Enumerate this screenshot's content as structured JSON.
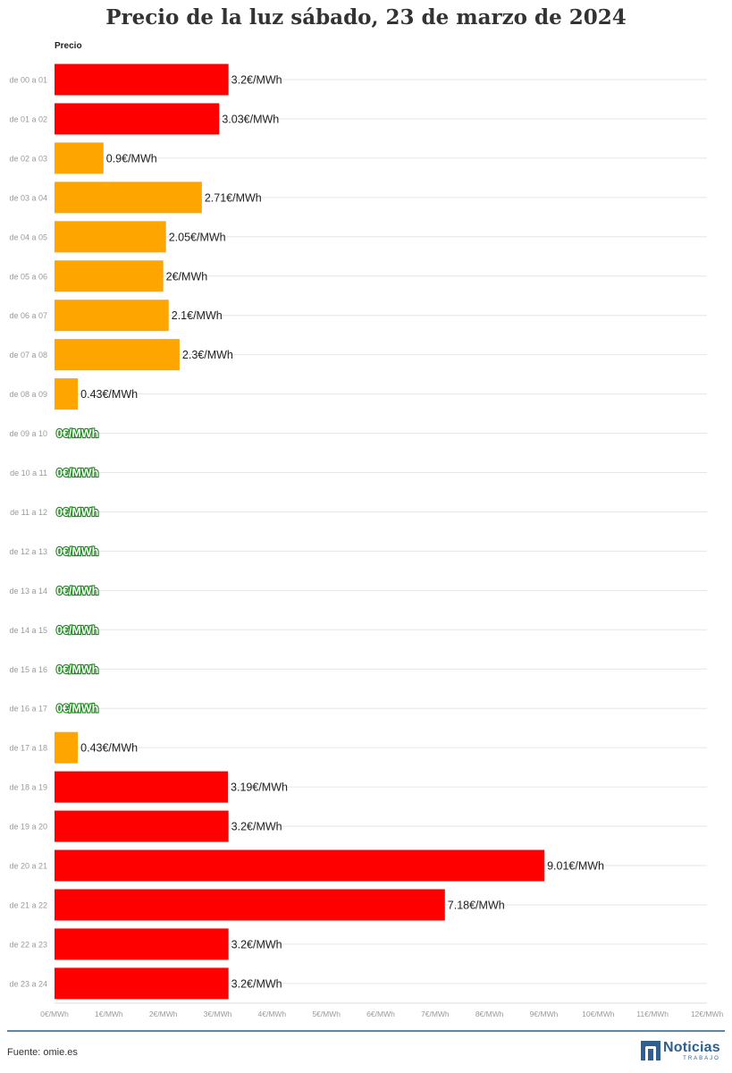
{
  "chart_data": {
    "type": "bar",
    "orientation": "horizontal",
    "title": "Precio de la luz sábado, 23 de marzo de 2024",
    "series_name": "Precio",
    "categories": [
      "de 00 a 01",
      "de 01 a 02",
      "de 02 a 03",
      "de 03 a 04",
      "de 04 a 05",
      "de 05 a 06",
      "de 06 a 07",
      "de 07 a 08",
      "de 08 a 09",
      "de 09 a 10",
      "de 10 a 11",
      "de 11 a 12",
      "de 12 a 13",
      "de 13 a 14",
      "de 14 a 15",
      "de 15 a 16",
      "de 16 a 17",
      "de 17 a 18",
      "de 18 a 19",
      "de 19 a 20",
      "de 20 a 21",
      "de 21 a 22",
      "de 22 a 23",
      "de 23 a 24"
    ],
    "values": [
      3.2,
      3.03,
      0.9,
      2.71,
      2.05,
      2,
      2.1,
      2.3,
      0.43,
      0,
      0,
      0,
      0,
      0,
      0,
      0,
      0,
      0.43,
      3.19,
      3.2,
      9.01,
      7.18,
      3.2,
      3.2
    ],
    "value_labels": [
      "3.2€/MWh",
      "3.03€/MWh",
      "0.9€/MWh",
      "2.71€/MWh",
      "2.05€/MWh",
      "2€/MWh",
      "2.1€/MWh",
      "2.3€/MWh",
      "0.43€/MWh",
      "0€/MWh",
      "0€/MWh",
      "0€/MWh",
      "0€/MWh",
      "0€/MWh",
      "0€/MWh",
      "0€/MWh",
      "0€/MWh",
      "0.43€/MWh",
      "3.19€/MWh",
      "3.2€/MWh",
      "9.01€/MWh",
      "7.18€/MWh",
      "3.2€/MWh",
      "3.2€/MWh"
    ],
    "bar_levels": [
      "high",
      "high",
      "mid",
      "mid",
      "mid",
      "mid",
      "mid",
      "mid",
      "mid",
      "zero",
      "zero",
      "zero",
      "zero",
      "zero",
      "zero",
      "zero",
      "zero",
      "mid",
      "high",
      "high",
      "high",
      "high",
      "high",
      "high"
    ],
    "level_colors": {
      "high": "#ff0000",
      "mid": "#ffa500",
      "zero": "#1a8a1a"
    },
    "xlim": [
      0,
      12
    ],
    "x_ticks": [
      0,
      1,
      2,
      3,
      4,
      5,
      6,
      7,
      8,
      9,
      10,
      11,
      12
    ],
    "x_tick_labels": [
      "0€/MWh",
      "1€/MWh",
      "2€/MWh",
      "3€/MWh",
      "4€/MWh",
      "5€/MWh",
      "6€/MWh",
      "7€/MWh",
      "8€/MWh",
      "9€/MWh",
      "10€/MWh",
      "11€/MWh",
      "12€/MWh"
    ],
    "grid": true
  },
  "footer": {
    "source": "Fuente: omie.es",
    "logo_text": "Noticias",
    "logo_subtext": "TRABAJO"
  }
}
